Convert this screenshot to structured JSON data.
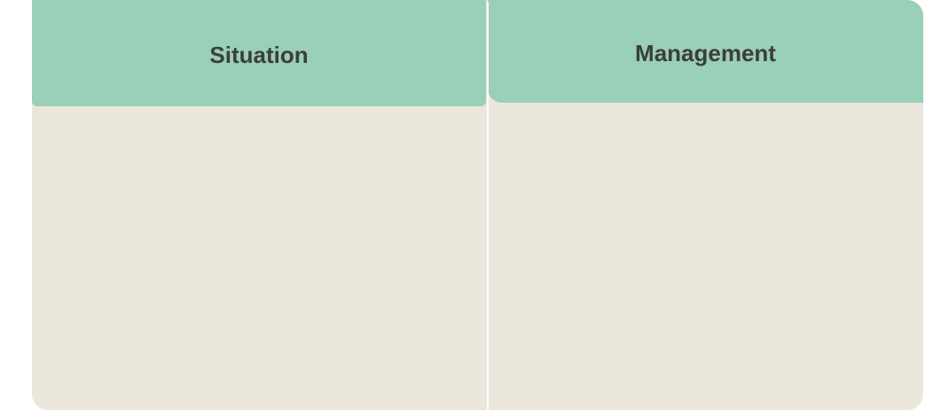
{
  "table": {
    "columns": [
      "Situation",
      "Management"
    ],
    "header_color": "#9acfb8",
    "body_color": "#ebe7dc",
    "rows": []
  }
}
